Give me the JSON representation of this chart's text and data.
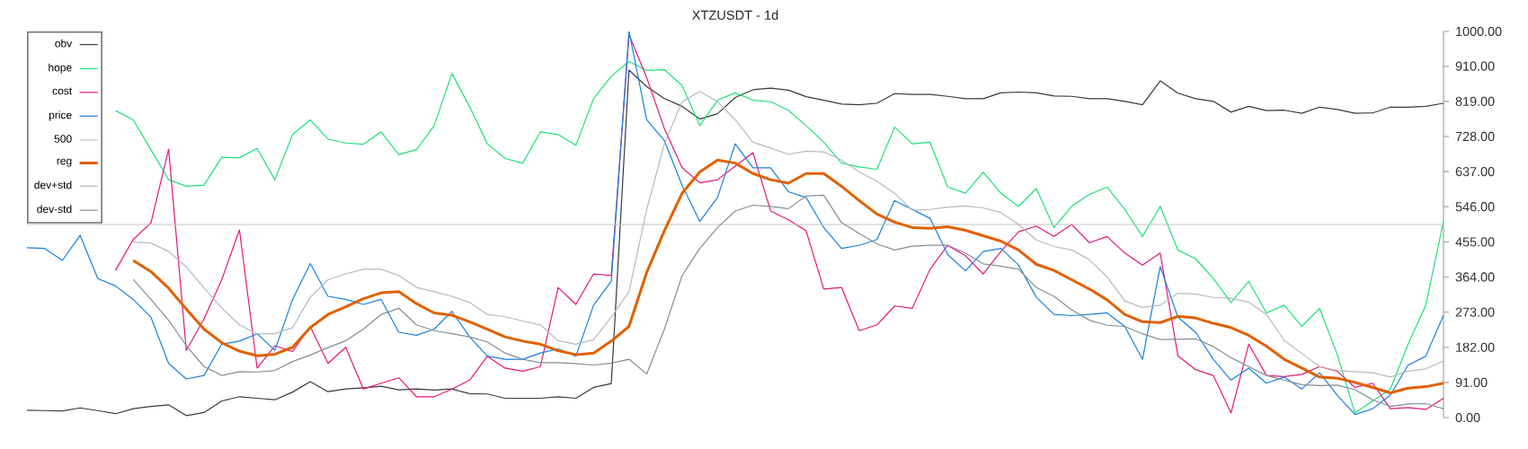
{
  "chart_data": {
    "type": "line",
    "title": "XTZUSDT - 1d",
    "categories": [
      null,
      null,
      null,
      null,
      null,
      null,
      null,
      null,
      null,
      null,
      null,
      null,
      null,
      null,
      null,
      null,
      null,
      null,
      null,
      null,
      null,
      null,
      null,
      null,
      null,
      null,
      null,
      null,
      null,
      null,
      null,
      null,
      null,
      null,
      null,
      null,
      null,
      null,
      null,
      null,
      null,
      null,
      null,
      null,
      null,
      null,
      null,
      null,
      null,
      null,
      null,
      null,
      null,
      null,
      null,
      null,
      null,
      null,
      null,
      null,
      null,
      null,
      null,
      null,
      null,
      null,
      null,
      null,
      null,
      null,
      null,
      null,
      null,
      null,
      null,
      null,
      null,
      null,
      null,
      null,
      null
    ],
    "series": [
      {
        "name": "obv",
        "color": "#3a3a3a",
        "values": [
          19,
          18,
          17,
          25,
          18,
          10,
          23,
          29,
          33,
          5,
          13,
          43,
          54,
          50,
          46,
          66,
          93,
          67,
          74,
          77,
          81,
          72,
          74,
          71,
          74,
          62,
          61,
          50,
          50,
          50,
          54,
          50,
          78,
          88,
          900,
          857,
          826,
          806,
          773,
          787,
          829,
          849,
          853,
          848,
          831,
          822,
          812,
          810,
          814,
          839,
          837,
          837,
          832,
          826,
          826,
          841,
          843,
          841,
          833,
          832,
          826,
          826,
          819,
          810,
          872,
          840,
          826,
          819,
          791,
          806,
          795,
          796,
          788,
          804,
          798,
          788,
          789,
          804,
          804,
          806,
          814
        ]
      },
      {
        "name": "hope",
        "color": "#1fe07a",
        "values": [
          null,
          null,
          null,
          null,
          null,
          795,
          771,
          694,
          616,
          599,
          602,
          674,
          673,
          697,
          616,
          733,
          771,
          721,
          711,
          708,
          740,
          681,
          694,
          756,
          891,
          805,
          709,
          671,
          659,
          740,
          733,
          705,
          826,
          884,
          922,
          899,
          901,
          860,
          756,
          822,
          841,
          822,
          818,
          796,
          756,
          713,
          659,
          649,
          643,
          752,
          709,
          713,
          597,
          581,
          636,
          581,
          547,
          593,
          492,
          547,
          578,
          597,
          539,
          469,
          547,
          434,
          411,
          360,
          298,
          353,
          271,
          291,
          236,
          283,
          163,
          12,
          43,
          74,
          190,
          291,
          509
        ]
      },
      {
        "name": "cost",
        "color": "#e4177a",
        "values": [
          null,
          null,
          null,
          null,
          null,
          381,
          461,
          504,
          695,
          174,
          256,
          357,
          486,
          128,
          186,
          171,
          236,
          140,
          182,
          74,
          89,
          103,
          54,
          54,
          74,
          97,
          159,
          128,
          120,
          132,
          337,
          293,
          372,
          368,
          992,
          880,
          748,
          647,
          608,
          616,
          651,
          686,
          535,
          512,
          484,
          333,
          337,
          225,
          240,
          289,
          283,
          384,
          446,
          419,
          372,
          430,
          481,
          496,
          469,
          500,
          453,
          469,
          426,
          395,
          426,
          160,
          124,
          109,
          12,
          190,
          109,
          106,
          112,
          132,
          120,
          78,
          89,
          23,
          26,
          21,
          50
        ]
      },
      {
        "name": "price",
        "color": "#1a7fe0",
        "values": [
          440,
          438,
          407,
          472,
          360,
          341,
          306,
          260,
          140,
          100,
          109,
          190,
          198,
          217,
          174,
          306,
          399,
          314,
          306,
          293,
          306,
          221,
          213,
          229,
          275,
          209,
          159,
          151,
          151,
          167,
          178,
          159,
          291,
          353,
          1000,
          771,
          717,
          601,
          508,
          570,
          709,
          647,
          647,
          585,
          570,
          492,
          438,
          446,
          461,
          562,
          539,
          516,
          422,
          380,
          430,
          438,
          395,
          312,
          267,
          264,
          267,
          271,
          236,
          151,
          391,
          260,
          221,
          151,
          97,
          128,
          89,
          105,
          74,
          116,
          58,
          8,
          23,
          58,
          136,
          159,
          265
        ]
      },
      {
        "name": "500",
        "color": "#c4c4c4",
        "values": [
          500,
          500,
          500,
          500,
          500,
          500,
          500,
          500,
          500,
          500,
          500,
          500,
          500,
          500,
          500,
          500,
          500,
          500,
          500,
          500,
          500,
          500,
          500,
          500,
          500,
          500,
          500,
          500,
          500,
          500,
          500,
          500,
          500,
          500,
          500,
          500,
          500,
          500,
          500,
          500,
          500,
          500,
          500,
          500,
          500,
          500,
          500,
          500,
          500,
          500,
          500,
          500,
          500,
          500,
          500,
          500,
          500,
          500,
          500,
          500,
          500,
          500,
          500,
          500,
          500,
          500,
          500,
          500,
          500,
          500,
          500,
          500,
          500,
          500,
          500,
          500,
          500,
          500,
          500,
          500,
          500
        ]
      },
      {
        "name": "reg",
        "color": "#e06000",
        "values": [
          null,
          null,
          null,
          null,
          null,
          null,
          407,
          378,
          335,
          281,
          229,
          194,
          172,
          160,
          164,
          182,
          233,
          267,
          287,
          308,
          323,
          326,
          295,
          271,
          265,
          248,
          229,
          209,
          198,
          190,
          173,
          163,
          167,
          198,
          236,
          376,
          484,
          581,
          636,
          667,
          659,
          632,
          616,
          607,
          632,
          632,
          599,
          562,
          527,
          506,
          492,
          490,
          494,
          485,
          471,
          457,
          434,
          397,
          381,
          357,
          333,
          305,
          267,
          248,
          246,
          262,
          258,
          244,
          233,
          213,
          185,
          151,
          128,
          105,
          102,
          91,
          78,
          64,
          76,
          80,
          89
        ]
      },
      {
        "name": "dev+std",
        "color": "#b4bbc2",
        "values": [
          null,
          null,
          null,
          null,
          null,
          null,
          455,
          452,
          430,
          390,
          336,
          284,
          240,
          217,
          217,
          233,
          312,
          357,
          372,
          384,
          384,
          368,
          337,
          326,
          314,
          298,
          267,
          261,
          250,
          240,
          199,
          190,
          202,
          260,
          326,
          539,
          709,
          818,
          845,
          818,
          771,
          713,
          698,
          682,
          690,
          688,
          667,
          636,
          612,
          581,
          537,
          539,
          545,
          548,
          543,
          531,
          500,
          460,
          443,
          434,
          409,
          364,
          302,
          285,
          291,
          322,
          320,
          311,
          309,
          299,
          267,
          200,
          166,
          132,
          122,
          119,
          116,
          105,
          120,
          126,
          147
        ]
      },
      {
        "name": "dev-std",
        "color": "#858e97",
        "values": [
          null,
          null,
          null,
          null,
          null,
          null,
          358,
          306,
          252,
          186,
          132,
          109,
          119,
          118,
          122,
          145,
          162,
          181,
          199,
          229,
          267,
          283,
          240,
          225,
          217,
          209,
          196,
          167,
          151,
          142,
          142,
          140,
          136,
          141,
          151,
          113,
          229,
          368,
          438,
          492,
          535,
          550,
          547,
          541,
          574,
          576,
          505,
          477,
          450,
          434,
          444,
          446,
          446,
          426,
          398,
          392,
          384,
          337,
          314,
          279,
          252,
          239,
          236,
          217,
          202,
          203,
          204,
          184,
          155,
          132,
          109,
          97,
          85,
          83,
          84,
          72,
          46,
          29,
          35,
          36,
          23
        ]
      }
    ],
    "ylim": [
      0,
      1000
    ],
    "yticks": [
      {
        "value": 0,
        "label": "0.00"
      },
      {
        "value": 91,
        "label": "91.00"
      },
      {
        "value": 182,
        "label": "182.00"
      },
      {
        "value": 273,
        "label": "273.00"
      },
      {
        "value": 364,
        "label": "364.00"
      },
      {
        "value": 455,
        "label": "455.00"
      },
      {
        "value": 546,
        "label": "546.00"
      },
      {
        "value": 637,
        "label": "637.00"
      },
      {
        "value": 728,
        "label": "728.00"
      },
      {
        "value": 819,
        "label": "819.00"
      },
      {
        "value": 910,
        "label": "910.00"
      },
      {
        "value": 1000,
        "label": "1000.00"
      }
    ],
    "tick_labels": "y",
    "legend": "top left"
  }
}
